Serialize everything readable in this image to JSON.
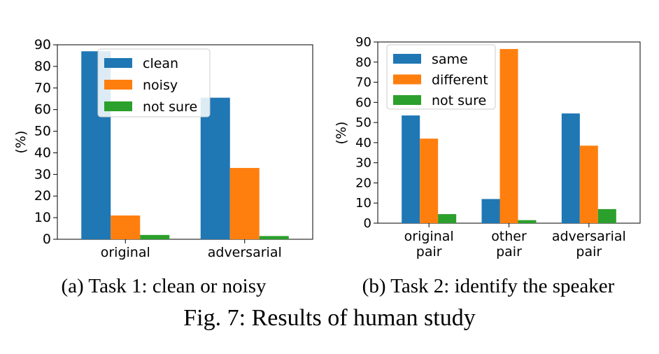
{
  "figure": {
    "caption": "Fig. 7: Results of human study",
    "panels": [
      {
        "caption": "(a) Task 1: clean or noisy"
      },
      {
        "caption": "(b) Task 2: identify the speaker"
      }
    ]
  },
  "colors": {
    "blue": "#1f77b4",
    "orange": "#ff7f0e",
    "green": "#2ca02c"
  },
  "chart_data": [
    {
      "type": "bar",
      "title": "",
      "xlabel": "",
      "ylabel": "(%)",
      "ylim": [
        0,
        90
      ],
      "yticks": [
        0,
        10,
        20,
        30,
        40,
        50,
        60,
        70,
        80,
        90
      ],
      "categories": [
        "original",
        "adversarial"
      ],
      "legend": "top-center",
      "series": [
        {
          "name": "clean",
          "color": "#1f77b4",
          "values": [
            87,
            65.5
          ]
        },
        {
          "name": "noisy",
          "color": "#ff7f0e",
          "values": [
            11,
            33
          ]
        },
        {
          "name": "not sure",
          "color": "#2ca02c",
          "values": [
            2,
            1.5
          ]
        }
      ]
    },
    {
      "type": "bar",
      "title": "",
      "xlabel": "",
      "ylabel": "(%)",
      "ylim": [
        0,
        90
      ],
      "yticks": [
        0,
        10,
        20,
        30,
        40,
        50,
        60,
        70,
        80,
        90
      ],
      "categories": [
        "original\npair",
        "other\npair",
        "adversarial\npair"
      ],
      "legend": "top-left",
      "series": [
        {
          "name": "same",
          "color": "#1f77b4",
          "values": [
            53.5,
            12,
            54.5
          ]
        },
        {
          "name": "different",
          "color": "#ff7f0e",
          "values": [
            42,
            86.5,
            38.5
          ]
        },
        {
          "name": "not sure",
          "color": "#2ca02c",
          "values": [
            4.5,
            1.5,
            7
          ]
        }
      ]
    }
  ]
}
